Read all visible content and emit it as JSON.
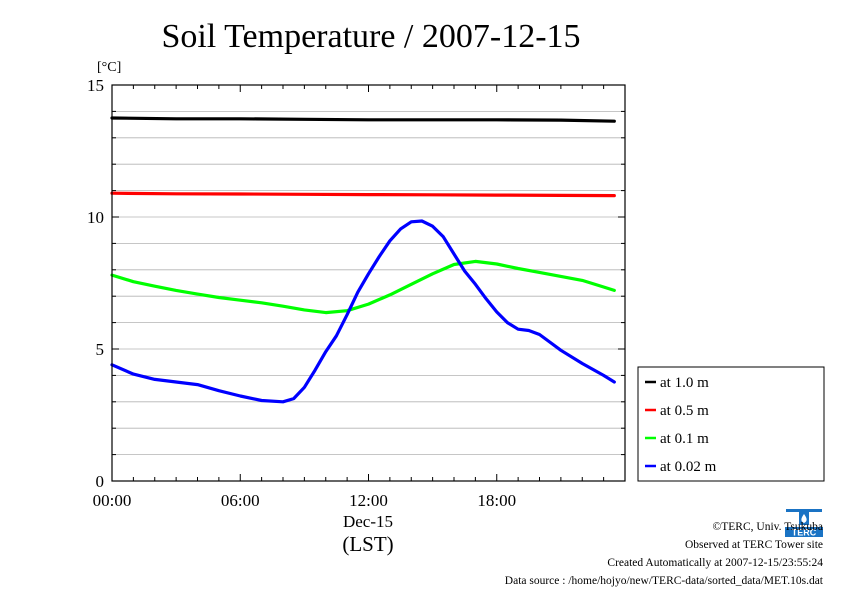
{
  "chart_data": {
    "type": "line",
    "title": "Soil Temperature / 2007-12-15",
    "yunit": "[°C]",
    "ylim": [
      0,
      15
    ],
    "yticks": [
      0,
      5,
      10,
      15
    ],
    "xlim": [
      0,
      24
    ],
    "xticks": [
      {
        "hour": 0,
        "label": "00:00"
      },
      {
        "hour": 6,
        "label": "06:00"
      },
      {
        "hour": 12,
        "label": "12:00"
      },
      {
        "hour": 18,
        "label": "18:00"
      }
    ],
    "date_label": "Dec-15",
    "xlabel": "(LST)",
    "grid": "horizontal",
    "legend_position": "right",
    "series": [
      {
        "name": "at 1.0 m",
        "color": "#000000",
        "x": [
          0,
          3,
          6,
          9,
          12,
          15,
          18,
          21,
          23.5
        ],
        "y": [
          13.75,
          13.72,
          13.72,
          13.7,
          13.68,
          13.68,
          13.68,
          13.67,
          13.63
        ]
      },
      {
        "name": "at 0.5 m",
        "color": "#ff0000",
        "x": [
          0,
          3,
          6,
          9,
          12,
          15,
          18,
          21,
          23.5
        ],
        "y": [
          10.9,
          10.88,
          10.87,
          10.86,
          10.85,
          10.84,
          10.83,
          10.82,
          10.81
        ]
      },
      {
        "name": "at 0.1 m",
        "color": "#00ff00",
        "x": [
          0,
          1,
          2,
          3,
          4,
          5,
          6,
          7,
          8,
          9,
          10,
          11,
          12,
          13,
          14,
          15,
          16,
          17,
          18,
          19,
          20,
          21,
          22,
          23,
          23.5
        ],
        "y": [
          7.8,
          7.55,
          7.38,
          7.22,
          7.08,
          6.95,
          6.85,
          6.75,
          6.62,
          6.48,
          6.38,
          6.45,
          6.7,
          7.05,
          7.45,
          7.85,
          8.2,
          8.32,
          8.22,
          8.05,
          7.9,
          7.75,
          7.6,
          7.35,
          7.22
        ]
      },
      {
        "name": "at 0.02 m",
        "color": "#0000ff",
        "x": [
          0,
          1,
          2,
          3,
          4,
          5,
          6,
          7,
          8,
          8.5,
          9,
          9.5,
          10,
          10.5,
          11,
          11.5,
          12,
          12.5,
          13,
          13.5,
          14,
          14.5,
          15,
          15.5,
          16,
          16.5,
          17,
          17.5,
          18,
          18.5,
          19,
          19.5,
          20,
          20.5,
          21,
          22,
          23,
          23.5
        ],
        "y": [
          4.4,
          4.05,
          3.85,
          3.75,
          3.65,
          3.42,
          3.22,
          3.05,
          3.0,
          3.12,
          3.55,
          4.2,
          4.9,
          5.5,
          6.3,
          7.15,
          7.85,
          8.5,
          9.1,
          9.55,
          9.82,
          9.85,
          9.65,
          9.25,
          8.6,
          7.95,
          7.45,
          6.9,
          6.4,
          6.0,
          5.75,
          5.7,
          5.55,
          5.25,
          4.95,
          4.45,
          4.0,
          3.75
        ]
      }
    ]
  },
  "footer": {
    "copyright": "©TERC, Univ. Tsukuba",
    "observed": "Observed at TERC Tower site",
    "created": "Created Automatically at 2007-12-15/23:55:24",
    "source": "Data source : /home/hojyo/new/TERC-data/sorted_data/MET.10s.dat"
  },
  "logo": {
    "text": "TERC",
    "color": "#1a73c4"
  }
}
